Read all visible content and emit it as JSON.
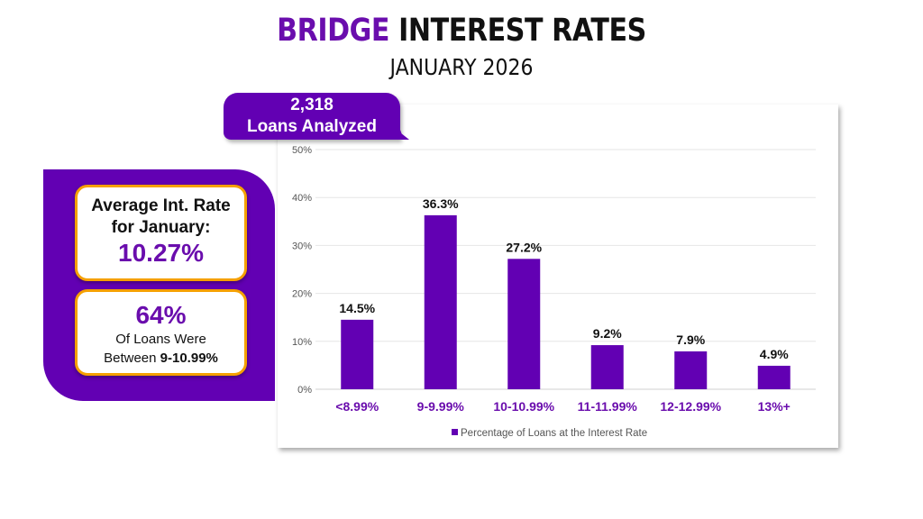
{
  "header": {
    "title_accent": "BRIDGE",
    "title_rest": "INTEREST RATES",
    "subtitle": "JANUARY 2026"
  },
  "badge": {
    "count": "2,318",
    "label": "Loans Analyzed"
  },
  "summary": {
    "avg_label_1": "Average Int. Rate",
    "avg_label_2": "for January:",
    "avg_value": "10.27%",
    "share_value": "64%",
    "share_label_1": "Of Loans Were",
    "share_label_2": "Between ",
    "share_range": "9-10.99%"
  },
  "colors": {
    "brand_purple": "#6200b3",
    "accent_orange": "#f5a000"
  },
  "chart_data": {
    "type": "bar",
    "categories": [
      "<8.99%",
      "9-9.99%",
      "10-10.99%",
      "11-11.99%",
      "12-12.99%",
      "13%+"
    ],
    "series": [
      {
        "name": "Percentage of Loans at the Interest Rate",
        "values": [
          14.5,
          36.3,
          27.2,
          9.2,
          7.9,
          4.9
        ]
      }
    ],
    "data_labels": [
      "14.5%",
      "36.3%",
      "27.2%",
      "9.2%",
      "7.9%",
      "4.9%"
    ],
    "yticks": [
      "0%",
      "10%",
      "20%",
      "30%",
      "40%",
      "50%"
    ],
    "ylim": [
      0,
      50
    ],
    "grid": true,
    "legend": "bottom",
    "bar_color": "#6200b3"
  }
}
